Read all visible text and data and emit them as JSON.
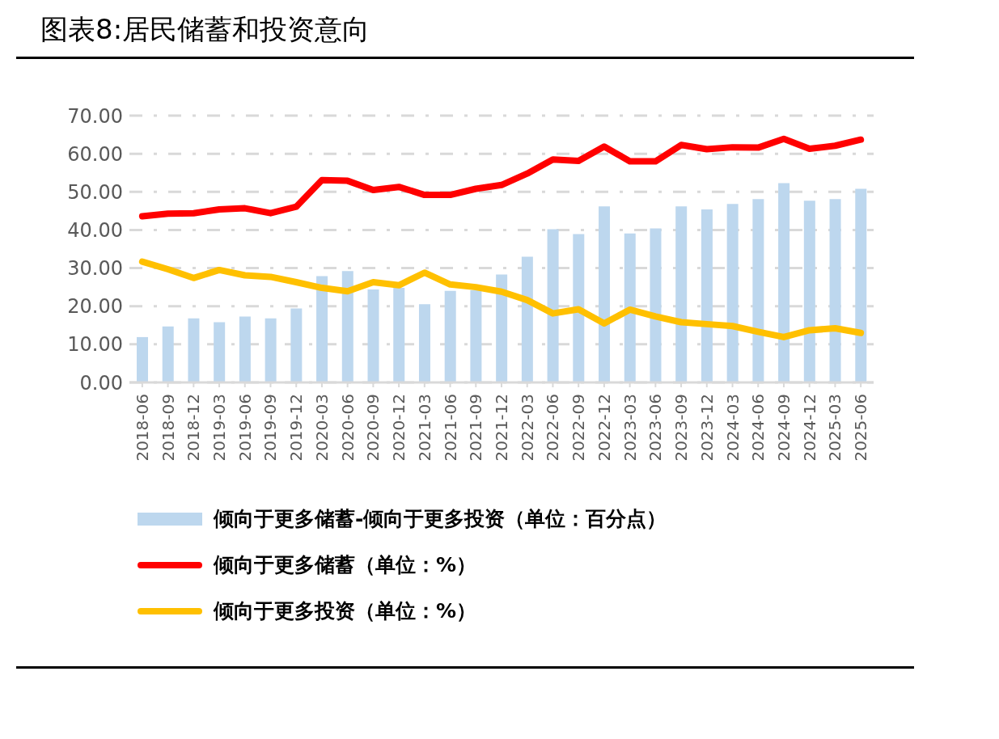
{
  "chart_data": {
    "type": "bar",
    "title": "图表8:居民储蓄和投资意向",
    "categories": [
      "2018-06",
      "2018-09",
      "2018-12",
      "2019-03",
      "2019-06",
      "2019-09",
      "2019-12",
      "2020-03",
      "2020-06",
      "2020-09",
      "2020-12",
      "2021-03",
      "2021-06",
      "2021-09",
      "2021-12",
      "2022-03",
      "2022-06",
      "2022-09",
      "2022-12",
      "2023-03",
      "2023-06",
      "2023-09",
      "2023-12",
      "2024-03",
      "2024-06",
      "2024-09",
      "2024-12",
      "2025-03",
      "2025-06"
    ],
    "series": [
      {
        "name": "倾向于更多储蓄-倾向于更多投资（单位：百分点）",
        "color": "#bdd7ee",
        "values": [
          11.9,
          14.7,
          16.8,
          15.8,
          17.3,
          16.8,
          19.4,
          27.9,
          29.2,
          24.4,
          24.8,
          20.5,
          24.0,
          24.2,
          28.3,
          33.0,
          40.2,
          38.9,
          46.2,
          39.1,
          40.4,
          46.2,
          45.4,
          46.8,
          48.1,
          52.3,
          47.7,
          48.1,
          50.8
        ]
      },
      {
        "name": "倾向于更多储蓄（单位：%）",
        "type": "line",
        "color": "#ff0000",
        "values": [
          43.6,
          44.3,
          44.4,
          45.4,
          45.7,
          44.4,
          46.1,
          53.1,
          52.9,
          50.5,
          51.3,
          49.2,
          49.2,
          50.8,
          51.8,
          54.8,
          58.5,
          58.1,
          61.9,
          58.0,
          58.0,
          62.3,
          61.2,
          61.7,
          61.6,
          63.9,
          61.3,
          62.1,
          63.7
        ]
      },
      {
        "name": "倾向于更多投资（单位：%）",
        "type": "line",
        "color": "#ffc000",
        "values": [
          31.7,
          29.7,
          27.4,
          29.5,
          28.1,
          27.7,
          26.3,
          24.8,
          23.9,
          26.3,
          25.5,
          28.8,
          25.7,
          25.0,
          23.8,
          21.6,
          18.1,
          19.2,
          15.5,
          19.1,
          17.3,
          15.8,
          15.3,
          14.8,
          13.3,
          11.9,
          13.7,
          14.2,
          13.0
        ]
      }
    ],
    "ylim": [
      0,
      70
    ],
    "yticks": [
      {
        "value": 0,
        "label": "0.00"
      },
      {
        "value": 10,
        "label": "10.00"
      },
      {
        "value": 20,
        "label": "20.00"
      },
      {
        "value": 30,
        "label": "30.00"
      },
      {
        "value": 40,
        "label": "40.00"
      },
      {
        "value": 50,
        "label": "50.00"
      },
      {
        "value": 60,
        "label": "60.00"
      },
      {
        "value": 70,
        "label": "70.00"
      }
    ],
    "grid": "y",
    "legend": "bottom",
    "marker": "none",
    "line_style": "solid"
  }
}
